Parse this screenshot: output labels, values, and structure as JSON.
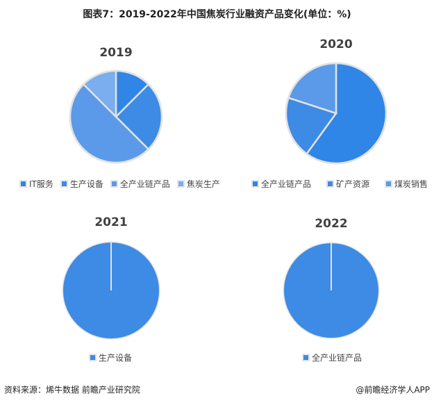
{
  "title": "图表7：2019-2022年中国焦炭行业融资产品变化(单位：%)",
  "chart_data": [
    {
      "type": "pie",
      "title": "2019",
      "categories": [
        "IT服务",
        "生产设备",
        "全产业链产品",
        "焦炭生产"
      ],
      "values": [
        12.5,
        25,
        50,
        12.5
      ],
      "colors": [
        "#2f86e6",
        "#3d8be4",
        "#5a9ae8",
        "#7aaeee"
      ],
      "legend": "bottom"
    },
    {
      "type": "pie",
      "title": "2020",
      "categories": [
        "全产业链产品",
        "矿产资源",
        "煤炭销售"
      ],
      "values": [
        60,
        20,
        20
      ],
      "colors": [
        "#2f86e6",
        "#3d8be4",
        "#5a9ae8"
      ],
      "legend": "bottom"
    },
    {
      "type": "pie",
      "title": "2021",
      "categories": [
        "生产设备"
      ],
      "values": [
        100
      ],
      "colors": [
        "#3d8be4"
      ],
      "legend": "bottom"
    },
    {
      "type": "pie",
      "title": "2022",
      "categories": [
        "全产业链产品"
      ],
      "values": [
        100
      ],
      "colors": [
        "#3d8be4"
      ],
      "legend": "bottom"
    }
  ],
  "footer": {
    "source": "资料来源：烯牛数据 前瞻产业研究院",
    "brand": "@前瞻经济学人APP"
  }
}
